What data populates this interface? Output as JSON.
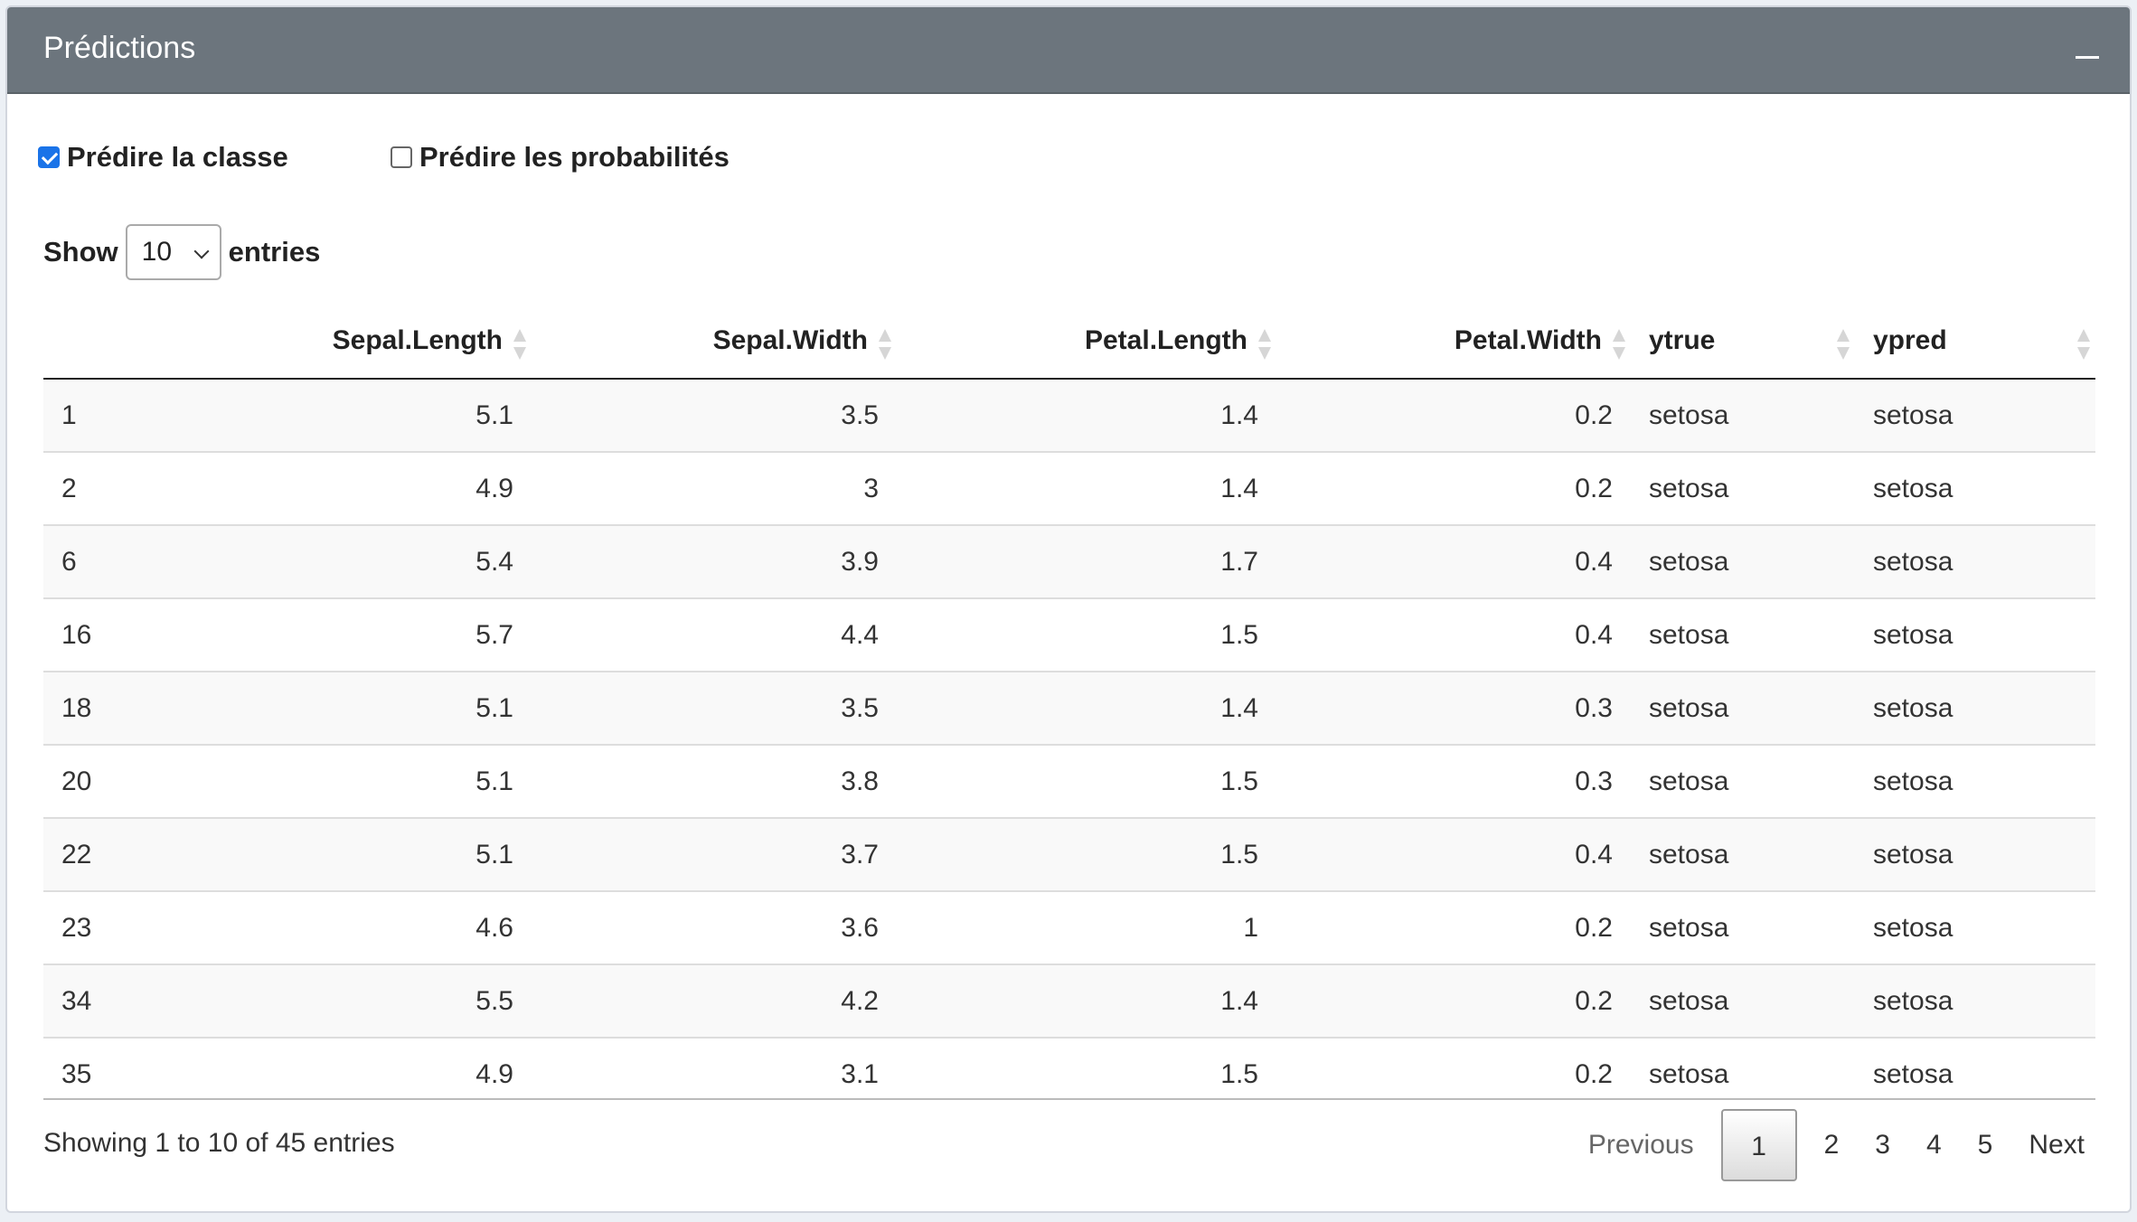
{
  "box": {
    "title": "Prédictions"
  },
  "options": {
    "predict_class": {
      "label": "Prédire la classe",
      "checked": true
    },
    "predict_proba": {
      "label": "Prédire les probabilités",
      "checked": false
    }
  },
  "length_menu": {
    "prefix": "Show",
    "value": "10",
    "suffix": "entries"
  },
  "table": {
    "columns": [
      "",
      "Sepal.Length",
      "Sepal.Width",
      "Petal.Length",
      "Petal.Width",
      "ytrue",
      "ypred"
    ],
    "rows": [
      [
        "1",
        "5.1",
        "3.5",
        "1.4",
        "0.2",
        "setosa",
        "setosa"
      ],
      [
        "2",
        "4.9",
        "3",
        "1.4",
        "0.2",
        "setosa",
        "setosa"
      ],
      [
        "6",
        "5.4",
        "3.9",
        "1.7",
        "0.4",
        "setosa",
        "setosa"
      ],
      [
        "16",
        "5.7",
        "4.4",
        "1.5",
        "0.4",
        "setosa",
        "setosa"
      ],
      [
        "18",
        "5.1",
        "3.5",
        "1.4",
        "0.3",
        "setosa",
        "setosa"
      ],
      [
        "20",
        "5.1",
        "3.8",
        "1.5",
        "0.3",
        "setosa",
        "setosa"
      ],
      [
        "22",
        "5.1",
        "3.7",
        "1.5",
        "0.4",
        "setosa",
        "setosa"
      ],
      [
        "23",
        "4.6",
        "3.6",
        "1",
        "0.2",
        "setosa",
        "setosa"
      ],
      [
        "34",
        "5.5",
        "4.2",
        "1.4",
        "0.2",
        "setosa",
        "setosa"
      ],
      [
        "35",
        "4.9",
        "3.1",
        "1.5",
        "0.2",
        "setosa",
        "setosa"
      ]
    ]
  },
  "footer": {
    "info": "Showing 1 to 10 of 45 entries",
    "previous": "Previous",
    "next": "Next",
    "pages": [
      "1",
      "2",
      "3",
      "4",
      "5"
    ],
    "current_page": "1"
  },
  "colors": {
    "header_bg": "#6c757d",
    "checkbox_accent": "#1a73e8"
  }
}
